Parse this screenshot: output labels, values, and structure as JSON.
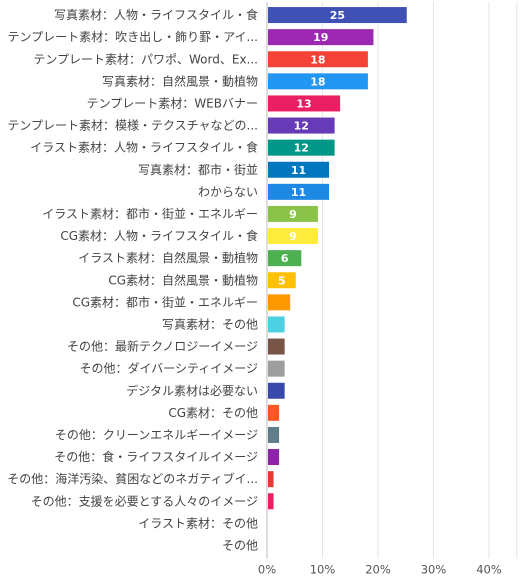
{
  "chart_data": {
    "type": "bar",
    "orientation": "horizontal",
    "categories": [
      "写真素材：人物・ライフスタイル・食",
      "テンプレート素材：吹き出し・飾り罫・アイ...",
      "テンプレート素材：パワポ、Word、Ex...",
      "写真素材：自然風景・動植物",
      "テンプレート素材：WEBバナー",
      "テンプレート素材：模様・テクスチャなどの...",
      "イラスト素材：人物・ライフスタイル・食",
      "写真素材：都市・街並",
      "わからない",
      "イラスト素材：都市・街並・エネルギー",
      "CG素材：人物・ライフスタイル・食",
      "イラスト素材：自然風景・動植物",
      "CG素材：自然風景・動植物",
      "CG素材：都市・街並・エネルギー",
      "写真素材：その他",
      "その他：最新テクノロジーイメージ",
      "その他：ダイバーシティイメージ",
      "デジタル素材は必要ない",
      "CG素材：その他",
      "その他：クリーンエネルギーイメージ",
      "その他：食・ライフスタイルイメージ",
      "その他：海洋汚染、貧困などのネガティブイ...",
      "その他：支援を必要とする人々のイメージ",
      "イラスト素材：その他",
      "その他"
    ],
    "values": [
      25,
      19,
      18,
      18,
      13,
      12,
      12,
      11,
      11,
      9,
      9,
      6,
      5,
      4,
      3,
      3,
      3,
      3,
      2,
      2,
      2,
      1,
      1,
      0,
      0
    ],
    "data_labels": [
      "25",
      "19",
      "18",
      "18",
      "13",
      "12",
      "12",
      "11",
      "11",
      "9",
      "9",
      "6",
      "5",
      "",
      "",
      "",
      "",
      "",
      "",
      "",
      "",
      "",
      "",
      "",
      ""
    ],
    "colors": [
      "#3f51b5",
      "#9c27b0",
      "#f44336",
      "#2196f3",
      "#e91e63",
      "#673ab7",
      "#009688",
      "#0277bd",
      "#1e88e5",
      "#8bc34a",
      "#ffeb3b",
      "#4caf50",
      "#ffc107",
      "#ff9800",
      "#4dd0e1",
      "#795548",
      "#9e9e9e",
      "#3949ab",
      "#ff5722",
      "#607d8b",
      "#8e24aa",
      "#e53935",
      "#e91e63",
      "#3f51b5",
      "#9c27b0"
    ],
    "x_ticks": [
      0,
      10,
      20,
      30,
      40
    ],
    "x_tick_labels": [
      "0%",
      "10%",
      "20%",
      "30%",
      "40%"
    ],
    "xlim": [
      0,
      45
    ],
    "grid": true,
    "title": "",
    "xlabel": "",
    "ylabel": ""
  }
}
